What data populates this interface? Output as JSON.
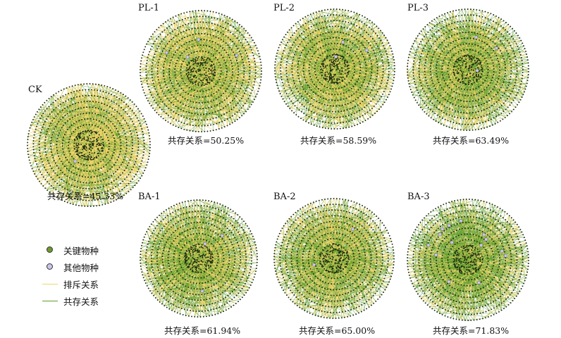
{
  "colors": {
    "keystone": "#6f9a2e",
    "other": "#c9c6ee",
    "negative": "#f2d56a",
    "positive": "#5e9e2c",
    "node": "#1d2a12"
  },
  "panels": [
    {
      "id": "ck",
      "title": "CK",
      "caption": "共存关系=45.33%",
      "positive_pct": 45.33,
      "other_nodes": 1
    },
    {
      "id": "pl1",
      "title": "PL-1",
      "caption": "共存关系=50.25%",
      "positive_pct": 50.25,
      "other_nodes": 4
    },
    {
      "id": "pl2",
      "title": "PL-2",
      "caption": "共存关系=58.59%",
      "positive_pct": 58.59,
      "other_nodes": 3
    },
    {
      "id": "pl3",
      "title": "PL-3",
      "caption": "共存关系=63.49%",
      "positive_pct": 63.49,
      "other_nodes": 3
    },
    {
      "id": "ba1",
      "title": "BA-1",
      "caption": "共存关系=61.94%",
      "positive_pct": 61.94,
      "other_nodes": 3
    },
    {
      "id": "ba2",
      "title": "BA-2",
      "caption": "共存关系=65.00%",
      "positive_pct": 65.0,
      "other_nodes": 2
    },
    {
      "id": "ba3",
      "title": "BA-3",
      "caption": "共存关系=71.83%",
      "positive_pct": 71.83,
      "other_nodes": 14
    }
  ],
  "legend": {
    "keystone_label": "关键物种",
    "other_label": "其他物种",
    "negative_label": "排斥关系",
    "positive_label": "共存关系"
  }
}
